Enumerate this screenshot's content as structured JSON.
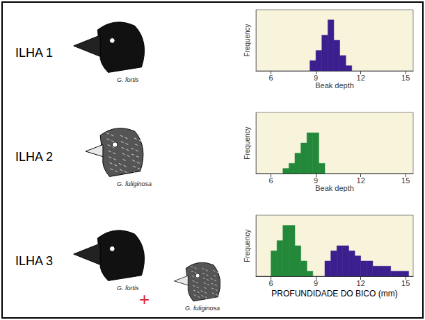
{
  "islands": [
    {
      "label": "ILHA 1",
      "species": [
        "G. fortis"
      ]
    },
    {
      "label": "ILHA 2",
      "species": [
        "G. fuliginosa"
      ]
    },
    {
      "label": "ILHA 3",
      "species": [
        "G. fortis",
        "G. fuliginosa"
      ],
      "joiner": "+"
    }
  ],
  "chart_data": [
    {
      "type": "histogram",
      "x_label": "Beak depth",
      "y_label": "Frequency",
      "xlim": [
        5,
        15.5
      ],
      "xticks": [
        6,
        9,
        12,
        15
      ],
      "ylim": [
        0,
        12
      ],
      "grid": false,
      "tick_labels": "x",
      "series": [
        {
          "color": "#3b1f8f",
          "bins": [
            8.6,
            9.0,
            9.4,
            9.8,
            10.2,
            10.6,
            11.0,
            11.4
          ],
          "values": [
            2,
            4,
            7,
            10,
            6,
            3,
            1
          ]
        }
      ]
    },
    {
      "type": "histogram",
      "x_label": "Beak depth",
      "y_label": "Frequency",
      "xlim": [
        5,
        15.5
      ],
      "xticks": [
        6,
        9,
        12,
        15
      ],
      "ylim": [
        0,
        12
      ],
      "grid": false,
      "tick_labels": "x",
      "series": [
        {
          "color": "#23883a",
          "bins": [
            6.8,
            7.2,
            7.6,
            8.0,
            8.4,
            8.8,
            9.2,
            9.6
          ],
          "values": [
            1,
            2,
            4,
            6,
            8,
            8,
            2
          ]
        }
      ]
    },
    {
      "type": "histogram",
      "x_label": "PROFUNDIDADE DO BICO (mm)",
      "y_label": "Frequency",
      "xlim": [
        5,
        15.5
      ],
      "xticks": [
        6,
        9,
        12,
        15
      ],
      "ylim": [
        0,
        12
      ],
      "grid": false,
      "tick_labels": "x",
      "series": [
        {
          "color": "#23883a",
          "bins": [
            6.0,
            6.4,
            6.8,
            7.2,
            7.6,
            8.0,
            8.4,
            8.8
          ],
          "values": [
            5,
            7,
            10,
            10,
            6,
            3,
            1
          ]
        },
        {
          "color": "#3b1f8f",
          "bins": [
            9.6,
            10.0,
            10.4,
            10.8,
            11.2,
            11.6,
            12.0,
            12.4,
            12.8,
            13.2,
            13.6,
            14.0,
            14.4,
            14.8,
            15.2
          ],
          "values": [
            3,
            5,
            6,
            6,
            5,
            4,
            3,
            3,
            2,
            2,
            2,
            1,
            1,
            1
          ]
        }
      ]
    }
  ]
}
